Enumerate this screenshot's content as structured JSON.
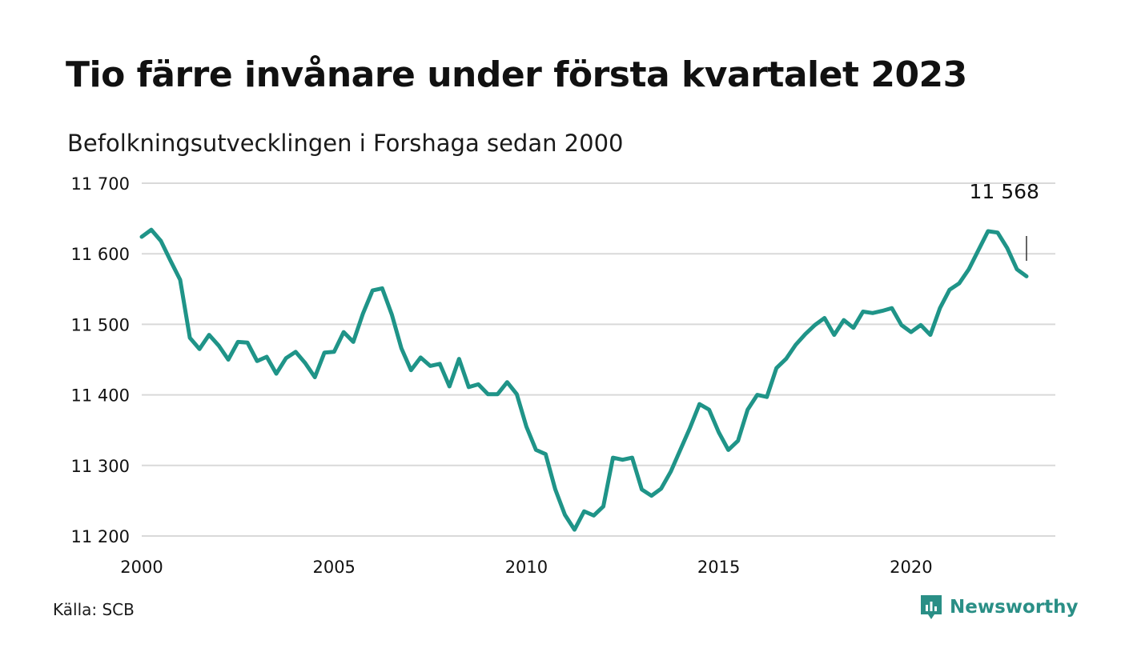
{
  "header": {
    "title": "Tio färre invånare under första kvartalet 2023",
    "subtitle": "Befolkningsutvecklingen i Forshaga sedan 2000"
  },
  "footer": {
    "source": "Källa: SCB",
    "brand": "Newsworthy",
    "brand_icon": "newsworthy-logo-icon"
  },
  "colors": {
    "line": "#1f9488",
    "grid": "#d9d9d9",
    "brand": "#2a8f86"
  },
  "chart_data": {
    "type": "line",
    "title": "Tio färre invånare under första kvartalet 2023",
    "subtitle": "Befolkningsutvecklingen i Forshaga sedan 2000",
    "xlabel": "",
    "ylabel": "",
    "xlim": [
      2000,
      2023.75
    ],
    "ylim": [
      11200,
      11700
    ],
    "x_ticks": [
      2000,
      2005,
      2010,
      2015,
      2020
    ],
    "x_tick_labels": [
      "2000",
      "2005",
      "2010",
      "2015",
      "2020"
    ],
    "y_ticks": [
      11200,
      11300,
      11400,
      11500,
      11600,
      11700
    ],
    "y_tick_labels": [
      "11 200",
      "11 300",
      "11 400",
      "11 500",
      "11 600",
      "11 700"
    ],
    "grid": true,
    "legend": "none",
    "annotation": {
      "label": "11 568",
      "x": 2023.0,
      "value": 11568
    },
    "series": [
      {
        "values": [
          [
            2000.0,
            11624
          ],
          [
            2000.25,
            11634
          ],
          [
            2000.5,
            11618
          ],
          [
            2000.75,
            11590
          ],
          [
            2001.0,
            11563
          ],
          [
            2001.25,
            11481
          ],
          [
            2001.5,
            11465
          ],
          [
            2001.75,
            11485
          ],
          [
            2002.0,
            11470
          ],
          [
            2002.25,
            11450
          ],
          [
            2002.5,
            11475
          ],
          [
            2002.75,
            11474
          ],
          [
            2003.0,
            11448
          ],
          [
            2003.25,
            11454
          ],
          [
            2003.5,
            11430
          ],
          [
            2003.75,
            11452
          ],
          [
            2004.0,
            11461
          ],
          [
            2004.25,
            11445
          ],
          [
            2004.5,
            11425
          ],
          [
            2004.75,
            11460
          ],
          [
            2005.0,
            11461
          ],
          [
            2005.25,
            11489
          ],
          [
            2005.5,
            11475
          ],
          [
            2005.75,
            11515
          ],
          [
            2006.0,
            11548
          ],
          [
            2006.25,
            11551
          ],
          [
            2006.5,
            11514
          ],
          [
            2006.75,
            11466
          ],
          [
            2007.0,
            11435
          ],
          [
            2007.25,
            11453
          ],
          [
            2007.5,
            11441
          ],
          [
            2007.75,
            11444
          ],
          [
            2008.0,
            11412
          ],
          [
            2008.25,
            11451
          ],
          [
            2008.5,
            11411
          ],
          [
            2008.75,
            11415
          ],
          [
            2009.0,
            11401
          ],
          [
            2009.25,
            11401
          ],
          [
            2009.5,
            11418
          ],
          [
            2009.75,
            11401
          ],
          [
            2010.0,
            11355
          ],
          [
            2010.25,
            11322
          ],
          [
            2010.5,
            11316
          ],
          [
            2010.75,
            11266
          ],
          [
            2011.0,
            11230
          ],
          [
            2011.25,
            11209
          ],
          [
            2011.5,
            11235
          ],
          [
            2011.75,
            11229
          ],
          [
            2012.0,
            11242
          ],
          [
            2012.25,
            11311
          ],
          [
            2012.5,
            11308
          ],
          [
            2012.75,
            11311
          ],
          [
            2013.0,
            11266
          ],
          [
            2013.25,
            11257
          ],
          [
            2013.5,
            11267
          ],
          [
            2013.75,
            11291
          ],
          [
            2014.0,
            11322
          ],
          [
            2014.25,
            11353
          ],
          [
            2014.5,
            11387
          ],
          [
            2014.75,
            11379
          ],
          [
            2015.0,
            11347
          ],
          [
            2015.25,
            11322
          ],
          [
            2015.5,
            11335
          ],
          [
            2015.75,
            11379
          ],
          [
            2016.0,
            11400
          ],
          [
            2016.25,
            11397
          ],
          [
            2016.5,
            11438
          ],
          [
            2016.75,
            11451
          ],
          [
            2017.0,
            11471
          ],
          [
            2017.25,
            11486
          ],
          [
            2017.5,
            11499
          ],
          [
            2017.75,
            11509
          ],
          [
            2018.0,
            11485
          ],
          [
            2018.25,
            11506
          ],
          [
            2018.5,
            11495
          ],
          [
            2018.75,
            11518
          ],
          [
            2019.0,
            11516
          ],
          [
            2019.25,
            11519
          ],
          [
            2019.5,
            11523
          ],
          [
            2019.75,
            11499
          ],
          [
            2020.0,
            11489
          ],
          [
            2020.25,
            11499
          ],
          [
            2020.5,
            11485
          ],
          [
            2020.75,
            11523
          ],
          [
            2021.0,
            11549
          ],
          [
            2021.25,
            11558
          ],
          [
            2021.5,
            11578
          ],
          [
            2021.75,
            11605
          ],
          [
            2022.0,
            11632
          ],
          [
            2022.25,
            11630
          ],
          [
            2022.5,
            11608
          ],
          [
            2022.75,
            11578
          ],
          [
            2023.0,
            11568
          ]
        ]
      }
    ]
  }
}
